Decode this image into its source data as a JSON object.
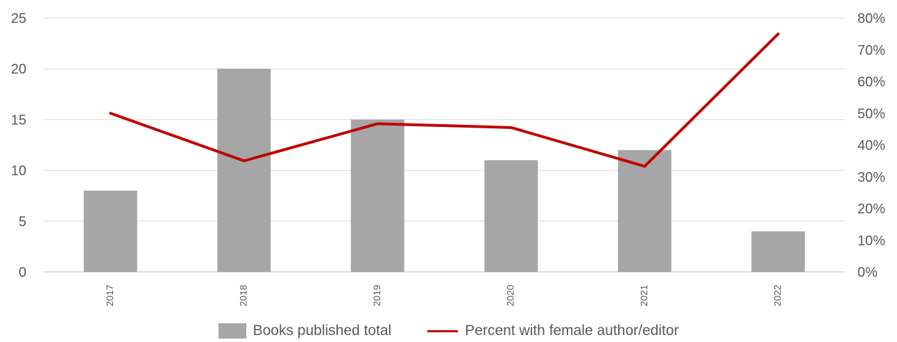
{
  "chart_data": {
    "type": "bar",
    "categories": [
      "2017",
      "2018",
      "2019",
      "2020",
      "2021",
      "2022"
    ],
    "series": [
      {
        "name": "Books published total",
        "type": "bar",
        "axis": "left",
        "color": "#a6a6a6",
        "values": [
          8,
          20,
          15,
          11,
          12,
          4
        ]
      },
      {
        "name": "Percent with female author/editor",
        "type": "line",
        "axis": "right",
        "color": "#c00000",
        "values": [
          50,
          35,
          46.7,
          45.5,
          33.3,
          75
        ]
      }
    ],
    "y_left": {
      "min": 0,
      "max": 25,
      "step": 5,
      "ticks": [
        "0",
        "5",
        "10",
        "15",
        "20",
        "25"
      ]
    },
    "y_right": {
      "min": 0,
      "max": 80,
      "step": 10,
      "ticks": [
        "0%",
        "10%",
        "20%",
        "30%",
        "40%",
        "50%",
        "60%",
        "70%",
        "80%"
      ]
    },
    "grid": true,
    "legend_position": "bottom",
    "title": "",
    "xlabel": "",
    "ylabel": ""
  }
}
